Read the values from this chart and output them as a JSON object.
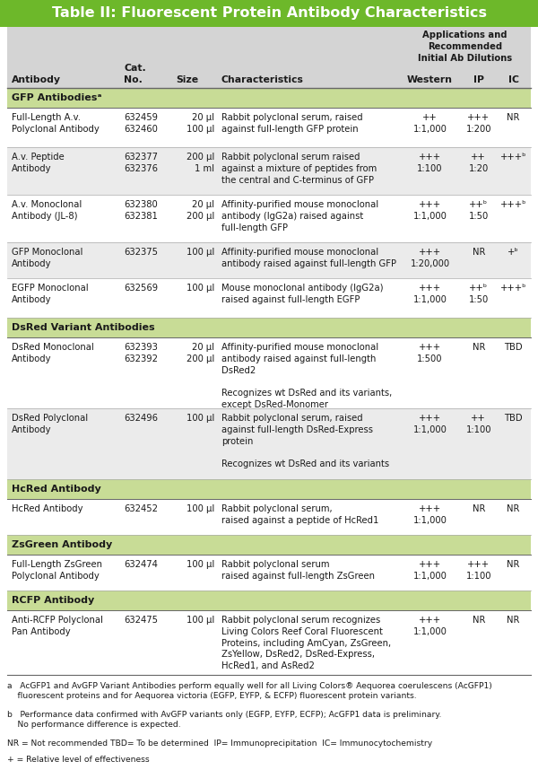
{
  "title": "Table II: Fluorescent Protein Antibody Characteristics",
  "title_bg": "#6db82a",
  "title_color": "#ffffff",
  "section_bg": "#c8dc96",
  "header_bg": "#d4d4d4",
  "col_headers": [
    "Antibody",
    "Cat.\nNo.",
    "Size",
    "Characteristics",
    "Western",
    "IP",
    "IC"
  ],
  "col_header_extra": "Applications and\nRecommended\nInitial Ab Dilutions",
  "sections": [
    {
      "name": "GFP Antibodiesᵃ",
      "rows": [
        {
          "antibody": "Full-Length A.v.\nPolyclonal Antibody",
          "cat": "632459\n632460",
          "size": "20 µl\n100 µl",
          "chars": "Rabbit polyclonal serum, raised\nagainst full-length GFP protein",
          "western": "++\n1:1,000",
          "ip": "+++\n1:200",
          "ic": "NR",
          "bg": "#ffffff"
        },
        {
          "antibody": "A.v. Peptide\nAntibody",
          "cat": "632377\n632376",
          "size": "200 µl\n1 ml",
          "chars": "Rabbit polyclonal serum raised\nagainst a mixture of peptides from\nthe central and C-terminus of GFP",
          "western": "+++\n1:100",
          "ip": "++\n1:20",
          "ic": "+++ᵇ",
          "bg": "#ebebeb"
        },
        {
          "antibody": "A.v. Monoclonal\nAntibody (JL-8)",
          "cat": "632380\n632381",
          "size": "20 µl\n200 µl",
          "chars": "Affinity-purified mouse monoclonal\nantibody (IgG2a) raised against\nfull-length GFP",
          "western": "+++\n1:1,000",
          "ip": "++ᵇ\n1:50",
          "ic": "+++ᵇ",
          "bg": "#ffffff"
        },
        {
          "antibody": "GFP Monoclonal\nAntibody",
          "cat": "632375",
          "size": "100 µl",
          "chars": "Affinity-purified mouse monoclonal\nantibody raised against full-length GFP",
          "western": "+++\n1:20,000",
          "ip": "NR",
          "ic": "+ᵇ",
          "bg": "#ebebeb"
        },
        {
          "antibody": "EGFP Monoclonal\nAntibody",
          "cat": "632569",
          "size": "100 µl",
          "chars": "Mouse monoclonal antibody (IgG2a)\nraised against full-length EGFP",
          "western": "+++\n1:1,000",
          "ip": "++ᵇ\n1:50",
          "ic": "+++ᵇ",
          "bg": "#ffffff"
        }
      ]
    },
    {
      "name": "DsRed Variant Antibodies",
      "rows": [
        {
          "antibody": "DsRed Monoclonal\nAntibody",
          "cat": "632393\n632392",
          "size": "20 µl\n200 µl",
          "chars": "Affinity-purified mouse monoclonal\nantibody raised against full-length\nDsRed2\n\nRecognizes wt DsRed and its variants,\nexcept DsRed-Monomer",
          "western": "+++\n1:500",
          "ip": "NR",
          "ic": "TBD",
          "bg": "#ffffff"
        },
        {
          "antibody": "DsRed Polyclonal\nAntibody",
          "cat": "632496",
          "size": "100 µl",
          "chars": "Rabbit polyclonal serum, raised\nagainst full-length DsRed-Express\nprotein\n\nRecognizes wt DsRed and its variants",
          "western": "+++\n1:1,000",
          "ip": "++\n1:100",
          "ic": "TBD",
          "bg": "#ebebeb"
        }
      ]
    },
    {
      "name": "HcRed Antibody",
      "rows": [
        {
          "antibody": "HcRed Antibody",
          "cat": "632452",
          "size": "100 µl",
          "chars": "Rabbit polyclonal serum,\nraised against a peptide of HcRed1",
          "western": "+++\n1:1,000",
          "ip": "NR",
          "ic": "NR",
          "bg": "#ffffff"
        }
      ]
    },
    {
      "name": "ZsGreen Antibody",
      "rows": [
        {
          "antibody": "Full-Length ZsGreen\nPolyclonal Antibody",
          "cat": "632474",
          "size": "100 µl",
          "chars": "Rabbit polyclonal serum\nraised against full-length ZsGreen",
          "western": "+++\n1:1,000",
          "ip": "+++\n1:100",
          "ic": "NR",
          "bg": "#ffffff"
        }
      ]
    },
    {
      "name": "RCFP Antibody",
      "rows": [
        {
          "antibody": "Anti-RCFP Polyclonal\nPan Antibody",
          "cat": "632475",
          "size": "100 µl",
          "chars": "Rabbit polyclonal serum recognizes\nLiving Colors Reef Coral Fluorescent\nProteins, including AmCyan, ZsGreen,\nZsYellow, DsRed2, DsRed-Express,\nHcRed1, and AsRed2",
          "western": "+++\n1:1,000",
          "ip": "NR",
          "ic": "NR",
          "bg": "#ffffff"
        }
      ]
    }
  ],
  "footnote_a": "a   AcGFP1 and AvGFP Variant Antibodies perform equally well for all Living Colors® Aequorea coerulescens (AcGFP1)\n    fluorescent proteins and for Aequorea victoria (EGFP, EYFP, & ECFP) fluorescent protein variants.",
  "footnote_b": "b   Performance data confirmed with AvGFP variants only (EGFP, EYFP, ECFP); AcGFP1 data is preliminary.\n    No performance difference is expected.",
  "footnote_nr": "NR = Not recommended TBD= To be determined  IP= Immunoprecipitation  IC= Immunocytochemistry",
  "footnote_plus": "+ = Relative level of effectiveness",
  "row_heights": {
    "Full-Length A.v.\nPolyclonal Antibody": 0.62,
    "A.v. Peptide\nAntibody": 0.74,
    "A.v. Monoclonal\nAntibody (JL-8)": 0.74,
    "GFP Monoclonal\nAntibody": 0.56,
    "EGFP Monoclonal\nAntibody": 0.62,
    "DsRed Monoclonal\nAntibody": 1.1,
    "DsRed Polyclonal\nAntibody": 1.1,
    "HcRed Antibody": 0.56,
    "Full-Length ZsGreen\nPolyclonal Antibody": 0.56,
    "Anti-RCFP Polyclonal\nPan Antibody": 1.0
  }
}
